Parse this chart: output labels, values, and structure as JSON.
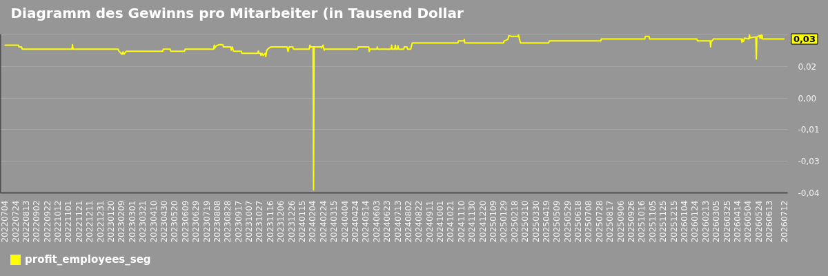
{
  "chart_data": {
    "type": "line",
    "title": "Diagramm des Gewinns pro Mitarbeiter (in Tausend Dollar",
    "x": [
      "2022-07-04",
      "2022-07-30",
      "2022-07-31",
      "2022-08-05",
      "2022-08-06",
      "2022-11-08",
      "2022-11-09",
      "2022-11-10",
      "2023-02-03",
      "2023-02-04",
      "2023-02-08",
      "2023-02-10",
      "2023-02-12",
      "2023-02-14",
      "2023-02-18",
      "2023-04-28",
      "2023-04-29",
      "2023-05-12",
      "2023-05-13",
      "2023-06-08",
      "2023-06-09",
      "2023-08-02",
      "2023-08-03",
      "2023-08-04",
      "2023-08-07",
      "2023-08-12",
      "2023-08-19",
      "2023-08-20",
      "2023-09-03",
      "2023-09-04",
      "2023-09-06",
      "2023-09-08",
      "2023-09-09",
      "2023-09-23",
      "2023-09-24",
      "2023-10-24",
      "2023-10-25",
      "2023-10-26",
      "2023-10-29",
      "2023-10-30",
      "2023-11-01",
      "2023-11-03",
      "2023-11-07",
      "2023-11-08",
      "2023-11-10",
      "2023-11-14",
      "2023-11-18",
      "2023-12-18",
      "2023-12-20",
      "2023-12-22",
      "2023-12-29",
      "2023-12-30",
      "2024-01-29",
      "2024-01-30",
      "2024-01-31",
      "2024-02-05",
      "2024-02-06",
      "2024-02-07",
      "2024-02-20",
      "2024-02-21",
      "2024-02-24",
      "2024-02-26",
      "2024-02-27",
      "2024-04-29",
      "2024-04-30",
      "2024-05-20",
      "2024-05-21",
      "2024-05-22",
      "2024-06-04",
      "2024-06-05",
      "2024-06-06",
      "2024-07-01",
      "2024-07-02",
      "2024-07-03",
      "2024-07-08",
      "2024-07-09",
      "2024-07-10",
      "2024-07-13",
      "2024-07-14",
      "2024-07-15",
      "2024-07-25",
      "2024-07-26",
      "2024-07-31",
      "2024-08-01",
      "2024-08-07",
      "2024-08-10",
      "2024-11-04",
      "2024-11-05",
      "2024-11-15",
      "2024-11-16",
      "2024-11-17",
      "2025-01-29",
      "2025-01-30",
      "2025-02-06",
      "2025-02-08",
      "2025-02-12",
      "2025-02-25",
      "2025-02-26",
      "2025-02-28",
      "2025-03-02",
      "2025-04-24",
      "2025-04-25",
      "2025-07-31",
      "2025-08-01",
      "2025-10-22",
      "2025-10-23",
      "2025-10-30",
      "2025-10-31",
      "2026-01-28",
      "2026-01-29",
      "2026-02-22",
      "2026-02-23",
      "2026-02-24",
      "2026-02-26",
      "2026-02-28",
      "2026-04-22",
      "2026-04-23",
      "2026-04-24",
      "2026-04-26",
      "2026-04-28",
      "2026-04-30",
      "2026-05-06",
      "2026-05-07",
      "2026-05-08",
      "2026-05-16",
      "2026-05-19",
      "2026-05-20",
      "2026-05-21",
      "2026-05-26",
      "2026-05-27",
      "2026-05-29",
      "2026-05-30",
      "2026-05-31",
      "2026-06-01",
      "2026-07-12"
    ],
    "series": [
      {
        "name": "profit_employees_seg",
        "color": "#ffff00",
        "values": [
          0.0263,
          0.0263,
          0.0255,
          0.0255,
          0.0245,
          0.0245,
          0.0265,
          0.0245,
          0.0245,
          0.0237,
          0.0226,
          0.0221,
          0.0233,
          0.0221,
          0.0235,
          0.0235,
          0.0245,
          0.0245,
          0.0235,
          0.0235,
          0.0245,
          0.0245,
          0.0263,
          0.025,
          0.026,
          0.0265,
          0.0265,
          0.0255,
          0.0255,
          0.024,
          0.0255,
          0.0237,
          0.0235,
          0.0235,
          0.0226,
          0.0226,
          0.0237,
          0.0226,
          0.0226,
          0.0216,
          0.0226,
          0.0216,
          0.0226,
          0.0211,
          0.024,
          0.025,
          0.0255,
          0.0255,
          0.0234,
          0.0255,
          0.0255,
          0.0245,
          0.0245,
          0.0263,
          0.0255,
          0.0255,
          -0.0397,
          0.0255,
          0.0255,
          0.025,
          0.0263,
          0.024,
          0.0245,
          0.0245,
          0.0255,
          0.0255,
          0.0234,
          0.0245,
          0.0245,
          0.0255,
          0.0245,
          0.0245,
          0.0263,
          0.0245,
          0.0245,
          0.0263,
          0.0245,
          0.0245,
          0.026,
          0.0245,
          0.0245,
          0.0255,
          0.0255,
          0.0245,
          0.0245,
          0.0273,
          0.0273,
          0.0282,
          0.0282,
          0.0289,
          0.0273,
          0.0273,
          0.0282,
          0.0289,
          0.0307,
          0.0303,
          0.0303,
          0.031,
          0.0289,
          0.0273,
          0.0273,
          0.0282,
          0.0282,
          0.0291,
          0.0291,
          0.0303,
          0.0303,
          0.0291,
          0.0291,
          0.0282,
          0.0282,
          0.0255,
          0.0282,
          0.0282,
          0.0291,
          0.0291,
          0.0276,
          0.0291,
          0.028,
          0.0295,
          0.0294,
          0.0291,
          0.031,
          0.0296,
          0.03,
          0.03,
          0.02,
          0.03,
          0.0306,
          0.0294,
          0.031,
          0.0294,
          0.0307,
          0.0291,
          0.0291
        ]
      }
    ],
    "xlim": [
      "2022-06-26",
      "2026-07-18"
    ],
    "xticks": [
      {
        "value": "2022-07-04",
        "label": "20220704"
      },
      {
        "value": "2022-07-24",
        "label": "20220724"
      },
      {
        "value": "2022-08-13",
        "label": "20220813"
      },
      {
        "value": "2022-09-02",
        "label": "20220902"
      },
      {
        "value": "2022-09-22",
        "label": "20220922"
      },
      {
        "value": "2022-10-12",
        "label": "20221012"
      },
      {
        "value": "2022-11-01",
        "label": "20221101"
      },
      {
        "value": "2022-11-21",
        "label": "20221121"
      },
      {
        "value": "2022-12-11",
        "label": "20221211"
      },
      {
        "value": "2022-12-31",
        "label": "20221231"
      },
      {
        "value": "2023-01-20",
        "label": "20230120"
      },
      {
        "value": "2023-02-09",
        "label": "20230209"
      },
      {
        "value": "2023-03-01",
        "label": "20230301"
      },
      {
        "value": "2023-03-21",
        "label": "20230321"
      },
      {
        "value": "2023-04-10",
        "label": "20230410"
      },
      {
        "value": "2023-04-30",
        "label": "20230430"
      },
      {
        "value": "2023-05-20",
        "label": "20230520"
      },
      {
        "value": "2023-06-09",
        "label": "20230609"
      },
      {
        "value": "2023-06-29",
        "label": "20230629"
      },
      {
        "value": "2023-07-19",
        "label": "20230719"
      },
      {
        "value": "2023-08-08",
        "label": "20230808"
      },
      {
        "value": "2023-08-28",
        "label": "20230828"
      },
      {
        "value": "2023-09-17",
        "label": "20230917"
      },
      {
        "value": "2023-10-07",
        "label": "20231007"
      },
      {
        "value": "2023-10-27",
        "label": "20231027"
      },
      {
        "value": "2023-11-16",
        "label": "20231116"
      },
      {
        "value": "2023-12-06",
        "label": "20231206"
      },
      {
        "value": "2023-12-26",
        "label": "20231226"
      },
      {
        "value": "2024-01-15",
        "label": "20240115"
      },
      {
        "value": "2024-02-04",
        "label": "20240204"
      },
      {
        "value": "2024-02-24",
        "label": "20240224"
      },
      {
        "value": "2024-03-15",
        "label": "20240315"
      },
      {
        "value": "2024-04-04",
        "label": "20240404"
      },
      {
        "value": "2024-04-24",
        "label": "20240424"
      },
      {
        "value": "2024-05-14",
        "label": "20240514"
      },
      {
        "value": "2024-06-03",
        "label": "20240603"
      },
      {
        "value": "2024-06-23",
        "label": "20240623"
      },
      {
        "value": "2024-07-13",
        "label": "20240713"
      },
      {
        "value": "2024-08-02",
        "label": "20240802"
      },
      {
        "value": "2024-08-22",
        "label": "20240822"
      },
      {
        "value": "2024-09-11",
        "label": "20240911"
      },
      {
        "value": "2024-10-01",
        "label": "20241001"
      },
      {
        "value": "2024-10-21",
        "label": "20241021"
      },
      {
        "value": "2024-11-10",
        "label": "20241110"
      },
      {
        "value": "2024-11-30",
        "label": "20241130"
      },
      {
        "value": "2024-12-20",
        "label": "20241220"
      },
      {
        "value": "2025-01-09",
        "label": "20250109"
      },
      {
        "value": "2025-01-29",
        "label": "20250129"
      },
      {
        "value": "2025-02-18",
        "label": "20250218"
      },
      {
        "value": "2025-03-10",
        "label": "20250310"
      },
      {
        "value": "2025-03-30",
        "label": "20250330"
      },
      {
        "value": "2025-04-19",
        "label": "20250419"
      },
      {
        "value": "2025-05-09",
        "label": "20250509"
      },
      {
        "value": "2025-05-29",
        "label": "20250529"
      },
      {
        "value": "2025-06-18",
        "label": "20250618"
      },
      {
        "value": "2025-07-08",
        "label": "20250708"
      },
      {
        "value": "2025-07-28",
        "label": "20250728"
      },
      {
        "value": "2025-08-17",
        "label": "20250817"
      },
      {
        "value": "2025-09-06",
        "label": "20250906"
      },
      {
        "value": "2025-09-26",
        "label": "20250926"
      },
      {
        "value": "2025-10-16",
        "label": "20251016"
      },
      {
        "value": "2025-11-05",
        "label": "20251105"
      },
      {
        "value": "2025-11-25",
        "label": "20251125"
      },
      {
        "value": "2025-12-15",
        "label": "20251215"
      },
      {
        "value": "2026-01-04",
        "label": "20260104"
      },
      {
        "value": "2026-01-24",
        "label": "20260124"
      },
      {
        "value": "2026-02-13",
        "label": "20260213"
      },
      {
        "value": "2026-03-05",
        "label": "20260305"
      },
      {
        "value": "2026-03-25",
        "label": "20260325"
      },
      {
        "value": "2026-04-14",
        "label": "20260414"
      },
      {
        "value": "2026-05-04",
        "label": "20260504"
      },
      {
        "value": "2026-05-24",
        "label": "20260524"
      },
      {
        "value": "2026-06-13",
        "label": "20260613"
      },
      {
        "value": "2026-07-12",
        "label": "20260712"
      }
    ],
    "ylim": [
      -0.041,
      0.0313
    ],
    "yticks": [
      {
        "value": 0.031,
        "label": null
      },
      {
        "value": 0.0166,
        "label": "0,02"
      },
      {
        "value": 0.0022,
        "label": "0,00"
      },
      {
        "value": -0.0122,
        "label": "-0,01"
      },
      {
        "value": -0.0266,
        "label": "-0,03"
      },
      {
        "value": -0.041,
        "label": "-0,04"
      }
    ],
    "annotations": [
      {
        "text": "0,03",
        "x": "2026-07-12",
        "y": 0.0291
      }
    ],
    "grid": "y",
    "legend": "bottom left",
    "line_style": "solid"
  }
}
